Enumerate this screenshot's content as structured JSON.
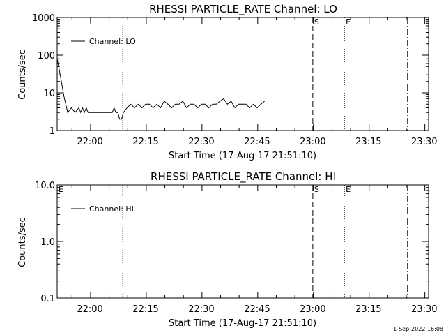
{
  "footer_stamp": "1-Sep-2022 16:08",
  "chart_data": [
    {
      "type": "line",
      "title": "RHESSI PARTICLE_RATE Channel: LO",
      "xlabel": "Start Time (17-Aug-17 21:51:10)",
      "ylabel": "Counts/sec",
      "yscale": "log",
      "ylim": [
        1,
        1000
      ],
      "xlim_minutes_after_start": [
        0,
        100
      ],
      "xticks": [
        "22:00",
        "22:15",
        "22:30",
        "22:45",
        "23:00",
        "23:15",
        "23:30"
      ],
      "yticks": [
        "1",
        "10",
        "100",
        "1000"
      ],
      "markers": [
        {
          "label": "",
          "time": "22:08:50",
          "style": "dotted"
        },
        {
          "label": "S",
          "time": "23:00:00",
          "style": "dashed"
        },
        {
          "label": "E",
          "time": "23:08:30",
          "style": "dotted"
        },
        {
          "label": "",
          "time": "23:25:30",
          "style": "dashdot"
        }
      ],
      "legend": {
        "text": "Channel: LO",
        "placement": "top-left"
      },
      "series": [
        {
          "name": "Channel: LO",
          "x": [
            "21:51:10",
            "21:52:00",
            "21:53:00",
            "21:53:30",
            "21:54:00",
            "21:55:00",
            "21:56:00",
            "21:57:00",
            "21:57:30",
            "21:58:00",
            "21:58:30",
            "21:59:00",
            "21:59:30",
            "22:00:00",
            "22:04:00",
            "22:06:00",
            "22:06:30",
            "22:07:00",
            "22:07:30",
            "22:08:00",
            "22:08:30",
            "22:09:00",
            "22:10:00",
            "22:11:00",
            "22:12:00",
            "22:13:00",
            "22:14:00",
            "22:15:00",
            "22:16:00",
            "22:17:00",
            "22:18:00",
            "22:19:00",
            "22:20:00",
            "22:21:00",
            "22:22:00",
            "22:23:00",
            "22:24:00",
            "22:25:00",
            "22:26:00",
            "22:27:00",
            "22:28:00",
            "22:29:00",
            "22:30:00",
            "22:31:00",
            "22:32:00",
            "22:33:00",
            "22:34:00",
            "22:35:00",
            "22:36:00",
            "22:37:00",
            "22:38:00",
            "22:39:00",
            "22:40:00",
            "22:41:00",
            "22:42:00",
            "22:43:00",
            "22:44:00",
            "22:45:00",
            "22:46:00",
            "22:47:00"
          ],
          "y": [
            80,
            30,
            8,
            5,
            3,
            4,
            3,
            4,
            3,
            4,
            3,
            4,
            3,
            3,
            3,
            3,
            4,
            3,
            3,
            2,
            2,
            3,
            4,
            5,
            4,
            5,
            4,
            5,
            5,
            4,
            5,
            4,
            6,
            5,
            4,
            5,
            5,
            6,
            4,
            5,
            5,
            4,
            5,
            5,
            4,
            5,
            5,
            6,
            7,
            5,
            6,
            4,
            5,
            5,
            5,
            4,
            5,
            4,
            5,
            6
          ]
        }
      ]
    },
    {
      "type": "line",
      "title": "RHESSI PARTICLE_RATE Channel: HI",
      "xlabel": "Start Time (17-Aug-17 21:51:10)",
      "ylabel": "Counts/sec",
      "yscale": "log",
      "ylim": [
        0.1,
        10
      ],
      "xlim_minutes_after_start": [
        0,
        100
      ],
      "xticks": [
        "22:00",
        "22:15",
        "22:30",
        "22:45",
        "23:00",
        "23:15",
        "23:30"
      ],
      "yticks": [
        "0.1",
        "1.0",
        "10.0"
      ],
      "markers": [
        {
          "label": "E",
          "time": "21:51:10",
          "style": "none"
        },
        {
          "label": "",
          "time": "22:08:50",
          "style": "dotted"
        },
        {
          "label": "S",
          "time": "23:00:00",
          "style": "dashed"
        },
        {
          "label": "E",
          "time": "23:08:30",
          "style": "dotted"
        },
        {
          "label": "",
          "time": "23:25:30",
          "style": "dashdot"
        }
      ],
      "legend": {
        "text": "Channel: HI",
        "placement": "top-left"
      },
      "series": [
        {
          "name": "Channel: HI",
          "x": [],
          "y": []
        }
      ]
    }
  ]
}
